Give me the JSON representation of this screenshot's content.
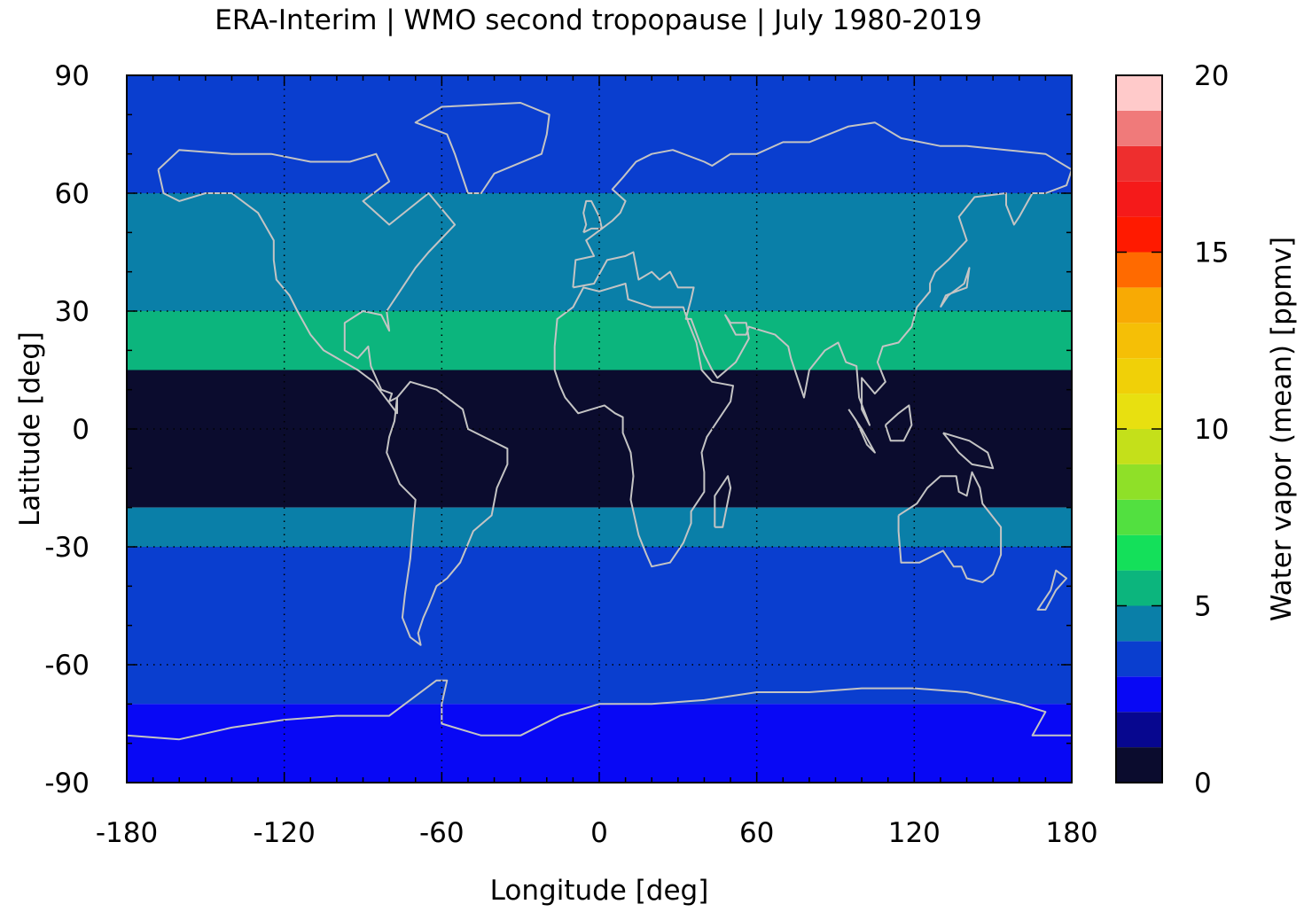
{
  "chart_data": {
    "type": "heatmap",
    "title": "ERA-Interim | WMO second tropopause | July 1980-2019",
    "xlabel": "Longitude [deg]",
    "ylabel": "Latitude [deg]",
    "xlim": [
      -180,
      180
    ],
    "ylim": [
      -90,
      90
    ],
    "x_ticks": [
      "-180",
      "-120",
      "-60",
      "0",
      "60",
      "120",
      "180"
    ],
    "y_ticks": [
      "90",
      "60",
      "30",
      "0",
      "-30",
      "-60",
      "-90"
    ],
    "grid": true,
    "colorbar": {
      "label": "Water vapor (mean) [ppmv]",
      "range": [
        0,
        20
      ],
      "ticks": [
        "20",
        "15",
        "10",
        "5",
        "0"
      ],
      "levels": [
        0,
        1,
        2,
        3,
        4,
        5,
        6,
        7,
        8,
        9,
        10,
        11,
        12,
        13,
        14,
        15,
        16,
        17,
        18,
        19,
        20
      ],
      "colors": [
        "#0b0c2e",
        "#07078f",
        "#0808f5",
        "#0a3ecf",
        "#0a7fa8",
        "#0cb57d",
        "#14e05a",
        "#52e040",
        "#8fe028",
        "#c4e01a",
        "#e8e010",
        "#f0d008",
        "#f5bf06",
        "#f8aa04",
        "#ff6a00",
        "#ff1a00",
        "#f51a1a",
        "#ee2e2e",
        "#f07a7a",
        "#ffcaca"
      ]
    },
    "mean_by_latitude_band": [
      {
        "lat_range": [
          60,
          90
        ],
        "value": 3.5
      },
      {
        "lat_range": [
          30,
          60
        ],
        "value": 4.5
      },
      {
        "lat_range": [
          15,
          30
        ],
        "value": 5.5
      },
      {
        "lat_range": [
          -20,
          15
        ],
        "value": 0.5
      },
      {
        "lat_range": [
          -30,
          -20
        ],
        "value": 4.5
      },
      {
        "lat_range": [
          -70,
          -30
        ],
        "value": 3.5
      },
      {
        "lat_range": [
          -90,
          -70
        ],
        "value": 2.5
      }
    ]
  }
}
